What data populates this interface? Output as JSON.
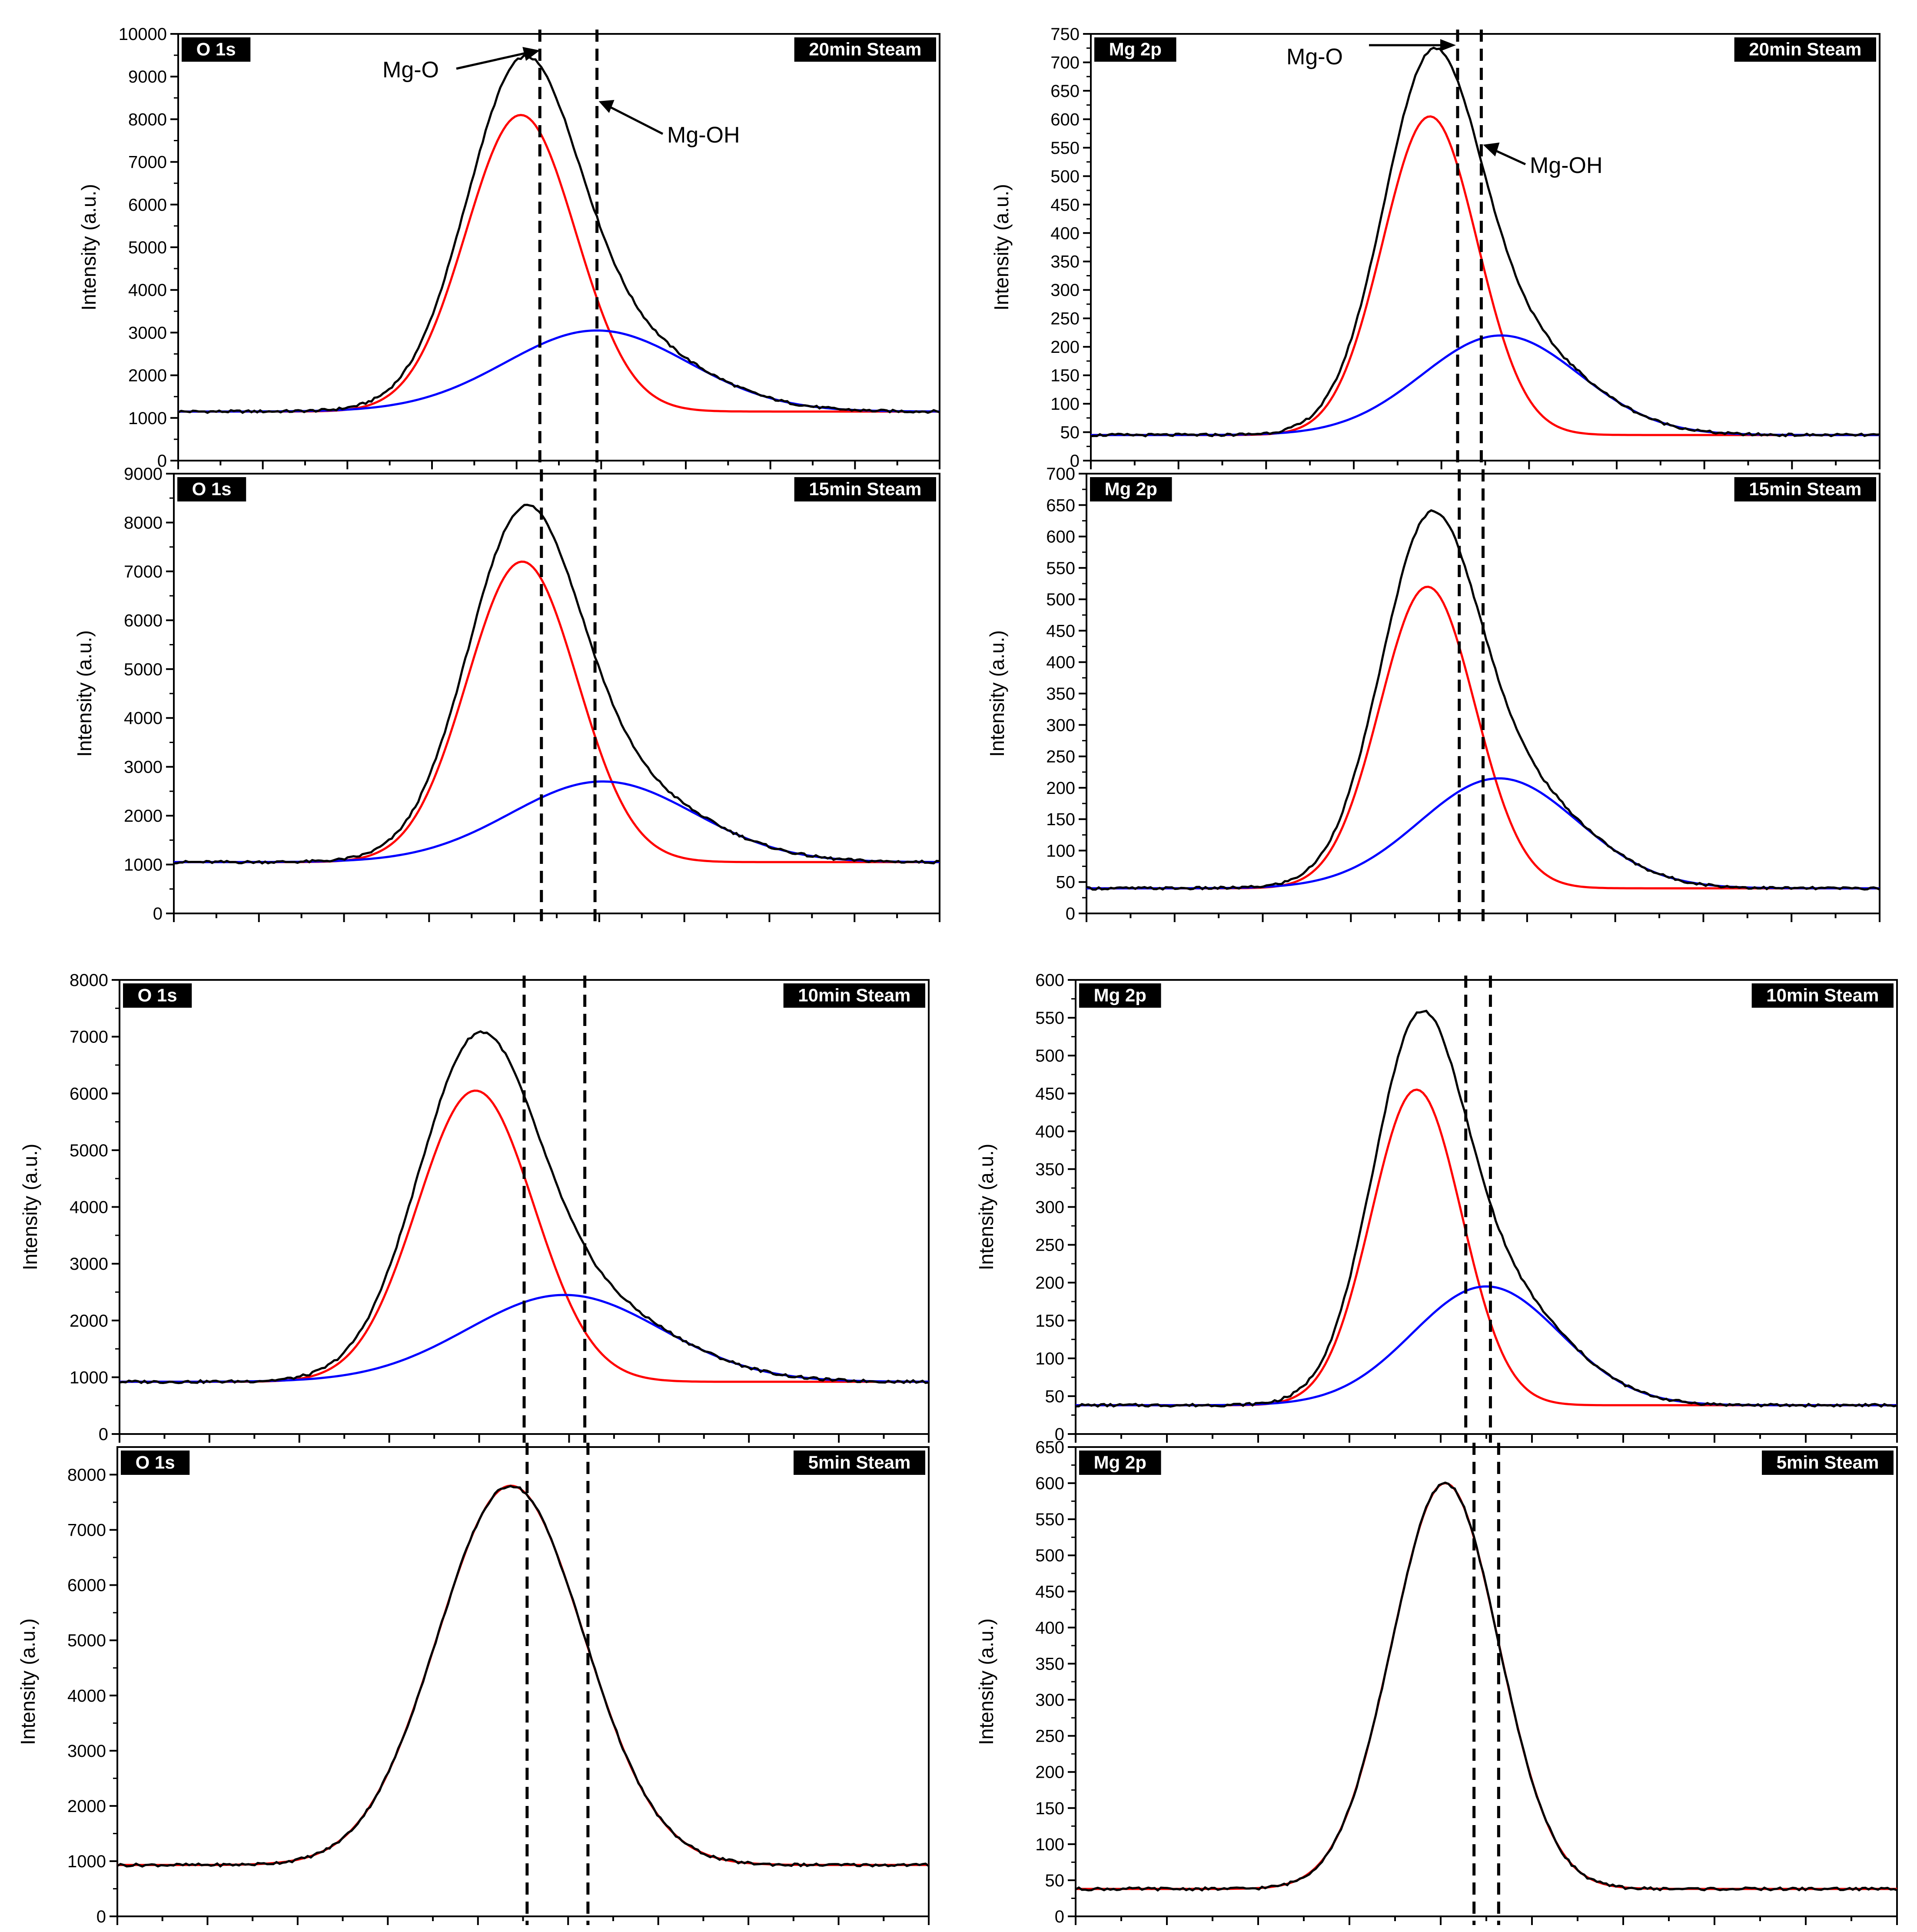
{
  "colors": {
    "measured": "#000000",
    "fit_mg_o": "#ff0000",
    "fit_mg_oh": "#0000ff",
    "reference_lines": "#000000",
    "tag_background": "#000000",
    "tag_text": "#ffffff"
  },
  "chart_data": [
    {
      "type": "line",
      "panel": "top-left",
      "element": "O 1s",
      "treatment": "20min Steam",
      "ylabel": "Intensity (a.u.)",
      "ylim": [
        0,
        10000
      ],
      "y_ticks": [
        0,
        1000,
        2000,
        3000,
        4000,
        5000,
        6000,
        7000,
        8000,
        9000,
        10000
      ],
      "y_tick_labels": [
        "0",
        "1000",
        "2000",
        "3000",
        "4000",
        "5000",
        "6000",
        "7000",
        "8000",
        "9000",
        "10000"
      ],
      "annotations": [
        "Mg-O",
        "Mg-OH"
      ],
      "baseline": 1150,
      "components": [
        {
          "name": "Mg-O",
          "peak": 8100,
          "center": 0.45,
          "width": 0.072
        },
        {
          "name": "Mg-OH",
          "peak": 3050,
          "center": 0.55,
          "width": 0.12
        }
      ],
      "reference_lines": [
        0.475,
        0.55
      ],
      "grid": false,
      "legend": "none"
    },
    {
      "type": "line",
      "panel": "middle-left",
      "element": "O 1s",
      "treatment": "15min Steam",
      "ylabel": "Intensity (a.u.)",
      "ylim": [
        0,
        9000
      ],
      "y_ticks": [
        0,
        1000,
        2000,
        3000,
        4000,
        5000,
        6000,
        7000,
        8000,
        9000
      ],
      "y_tick_labels": [
        "0",
        "1000",
        "2000",
        "3000",
        "4000",
        "5000",
        "6000",
        "7000",
        "8000",
        "9000"
      ],
      "baseline": 1050,
      "components": [
        {
          "name": "Mg-O",
          "peak": 7200,
          "center": 0.455,
          "width": 0.072
        },
        {
          "name": "Mg-OH",
          "peak": 2700,
          "center": 0.56,
          "width": 0.12
        }
      ],
      "reference_lines": [
        0.48,
        0.55
      ],
      "grid": false,
      "legend": "none"
    },
    {
      "type": "line",
      "panel": "lower-left",
      "element": "O 1s",
      "treatment": "10min Steam",
      "ylabel": "Intensity (a.u.)",
      "ylim": [
        0,
        8000
      ],
      "y_ticks": [
        0,
        1000,
        2000,
        3000,
        4000,
        5000,
        6000,
        7000,
        8000
      ],
      "y_tick_labels": [
        "0",
        "1000",
        "2000",
        "3000",
        "4000",
        "5000",
        "6000",
        "7000",
        "8000"
      ],
      "baseline": 920,
      "components": [
        {
          "name": "Mg-O",
          "peak": 6050,
          "center": 0.44,
          "width": 0.072
        },
        {
          "name": "Mg-OH",
          "peak": 2450,
          "center": 0.55,
          "width": 0.12
        }
      ],
      "reference_lines": [
        0.5,
        0.575
      ],
      "grid": false,
      "legend": "none"
    },
    {
      "type": "line",
      "panel": "bottom-left",
      "element": "O 1s",
      "treatment": "5min Steam",
      "ylabel": "Intensity (a.u.)",
      "ylim": [
        0,
        8500
      ],
      "y_ticks": [
        0,
        1000,
        2000,
        3000,
        4000,
        5000,
        6000,
        7000,
        8000
      ],
      "y_tick_labels": [
        "0",
        "1000",
        "2000",
        "3000",
        "4000",
        "5000",
        "6000",
        "7000",
        "8000"
      ],
      "baseline": 930,
      "components": [
        {
          "name": "Mg-O",
          "peak": 7800,
          "center": 0.485,
          "width": 0.09
        }
      ],
      "reference_lines": [
        0.505,
        0.58
      ],
      "grid": false,
      "legend": "none"
    },
    {
      "type": "line",
      "panel": "top-right",
      "element": "Mg 2p",
      "treatment": "20min Steam",
      "ylabel": "Intensity (a.u.)",
      "ylim": [
        0,
        750
      ],
      "y_ticks": [
        0,
        50,
        100,
        150,
        200,
        250,
        300,
        350,
        400,
        450,
        500,
        550,
        600,
        650,
        700,
        750
      ],
      "y_tick_labels": [
        "0",
        "50",
        "100",
        "150",
        "200",
        "250",
        "300",
        "350",
        "400",
        "450",
        "500",
        "550",
        "600",
        "650",
        "700",
        "750"
      ],
      "annotations": [
        "Mg-O",
        "Mg-OH"
      ],
      "baseline": 45,
      "components": [
        {
          "name": "Mg-O",
          "peak": 605,
          "center": 0.43,
          "width": 0.06
        },
        {
          "name": "Mg-OH",
          "peak": 220,
          "center": 0.52,
          "width": 0.1
        }
      ],
      "reference_lines": [
        0.465,
        0.495
      ],
      "grid": false,
      "legend": "none"
    },
    {
      "type": "line",
      "panel": "middle-right",
      "element": "Mg 2p",
      "treatment": "15min Steam",
      "ylabel": "Intensity (a.u.)",
      "ylim": [
        0,
        700
      ],
      "y_ticks": [
        0,
        50,
        100,
        150,
        200,
        250,
        300,
        350,
        400,
        450,
        500,
        550,
        600,
        650,
        700
      ],
      "y_tick_labels": [
        "0",
        "50",
        "100",
        "150",
        "200",
        "250",
        "300",
        "350",
        "400",
        "450",
        "500",
        "550",
        "600",
        "650",
        "700"
      ],
      "baseline": 40,
      "components": [
        {
          "name": "Mg-O",
          "peak": 520,
          "center": 0.43,
          "width": 0.06
        },
        {
          "name": "Mg-OH",
          "peak": 215,
          "center": 0.52,
          "width": 0.1
        }
      ],
      "reference_lines": [
        0.47,
        0.5
      ],
      "grid": false,
      "legend": "none"
    },
    {
      "type": "line",
      "panel": "lower-right",
      "element": "Mg 2p",
      "treatment": "10min Steam",
      "ylabel": "Intensity (a.u.)",
      "ylim": [
        0,
        600
      ],
      "y_ticks": [
        0,
        50,
        100,
        150,
        200,
        250,
        300,
        350,
        400,
        450,
        500,
        550,
        600
      ],
      "y_tick_labels": [
        "0",
        "50",
        "100",
        "150",
        "200",
        "250",
        "300",
        "350",
        "400",
        "450",
        "500",
        "550",
        "600"
      ],
      "baseline": 38,
      "components": [
        {
          "name": "Mg-O",
          "peak": 455,
          "center": 0.415,
          "width": 0.055
        },
        {
          "name": "Mg-OH",
          "peak": 195,
          "center": 0.5,
          "width": 0.09
        }
      ],
      "reference_lines": [
        0.475,
        0.505
      ],
      "grid": false,
      "legend": "none"
    },
    {
      "type": "line",
      "panel": "bottom-right",
      "element": "Mg 2p",
      "treatment": "5min Steam",
      "ylabel": "Intensity (a.u.)",
      "ylim": [
        0,
        650
      ],
      "y_ticks": [
        0,
        50,
        100,
        150,
        200,
        250,
        300,
        350,
        400,
        450,
        500,
        550,
        600,
        650
      ],
      "y_tick_labels": [
        "0",
        "50",
        "100",
        "150",
        "200",
        "250",
        "300",
        "350",
        "400",
        "450",
        "500",
        "550",
        "600",
        "650"
      ],
      "baseline": 38,
      "components": [
        {
          "name": "Mg-O",
          "peak": 600,
          "center": 0.45,
          "width": 0.065
        }
      ],
      "reference_lines": [
        0.485,
        0.515
      ],
      "grid": false,
      "legend": "none"
    }
  ]
}
